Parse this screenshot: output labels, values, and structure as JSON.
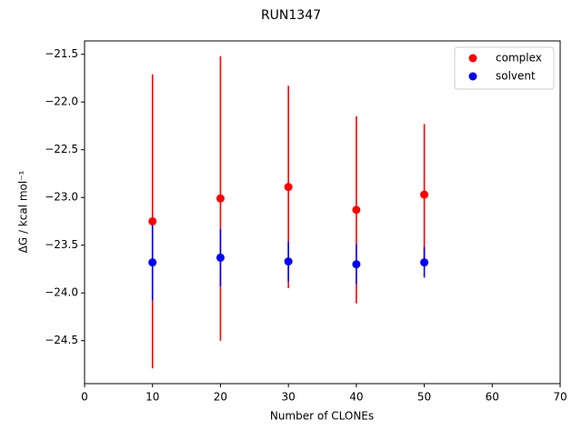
{
  "chart_data": {
    "type": "errorbar-scatter",
    "title": "RUN1347",
    "x_label": "Number of CLONEs",
    "y_label": "ΔG / kcal mol⁻¹",
    "x": [
      10,
      20,
      30,
      40,
      50
    ],
    "series": [
      {
        "name": "complex",
        "color": "#ff0000",
        "values": [
          -23.25,
          -23.01,
          -22.89,
          -23.13,
          -22.97
        ],
        "errors": [
          1.54,
          1.49,
          1.06,
          0.98,
          0.74
        ]
      },
      {
        "name": "solvent",
        "color": "#0000ff",
        "values": [
          -23.68,
          -23.63,
          -23.67,
          -23.7,
          -23.68
        ],
        "errors": [
          0.4,
          0.3,
          0.21,
          0.21,
          0.16
        ]
      }
    ],
    "xlim": [
      0,
      70
    ],
    "xticks": [
      0,
      10,
      20,
      30,
      40,
      50,
      60,
      70
    ],
    "ylim": [
      -24.95,
      -21.36
    ],
    "yticks": [
      {
        "value": -24.5,
        "label": "−24.5"
      },
      {
        "value": -24.0,
        "label": "−24.0"
      },
      {
        "value": -23.5,
        "label": "−23.5"
      },
      {
        "value": -23.0,
        "label": "−23.0"
      },
      {
        "value": -22.5,
        "label": "−22.5"
      },
      {
        "value": -22.0,
        "label": "−22.0"
      },
      {
        "value": -21.5,
        "label": "−21.5"
      }
    ],
    "legend": "upper right",
    "grid": false
  }
}
